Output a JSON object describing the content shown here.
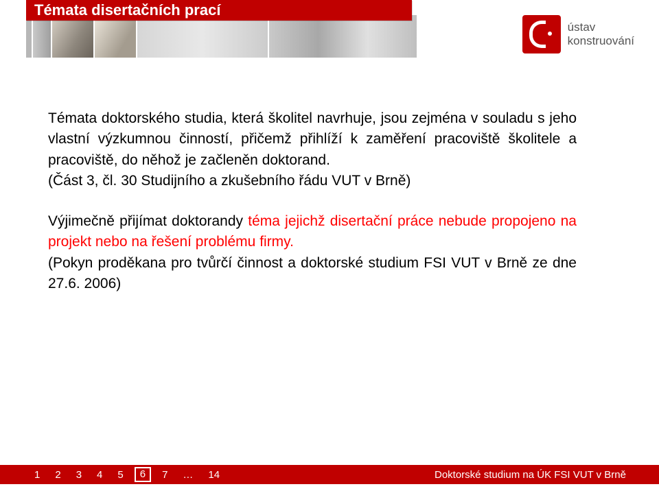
{
  "header": {
    "title": "Témata disertačních prací"
  },
  "logo": {
    "line1": "ústav",
    "line2": "konstruování"
  },
  "body": {
    "p1_a": "Témata doktorského studia, která školitel navrhuje, jsou zejména v souladu s jeho vlastní výzkumnou činností, přičemž přihlíží k zaměření pracoviště školitele a pracoviště, do něhož je začleněn doktorand.",
    "p1_b": "(Část 3, čl. 30 Studijního a zkušebního řádu VUT v Brně)",
    "p2_a": "Výjimečně přijímat doktorandy ",
    "p2_hl": "téma jejichž disertační práce nebude propojeno na projekt nebo na řešení problému firmy.",
    "p2_b": "(Pokyn proděkana pro tvůrčí činnost a doktorské studium FSI VUT v Brně ze dne 27.6. 2006)"
  },
  "footer": {
    "pages": [
      "1",
      "2",
      "3",
      "4",
      "5",
      "6",
      "7",
      "…",
      "14"
    ],
    "current_index": 5,
    "label": "Doktorské studium na ÚK FSI VUT v Brně"
  }
}
